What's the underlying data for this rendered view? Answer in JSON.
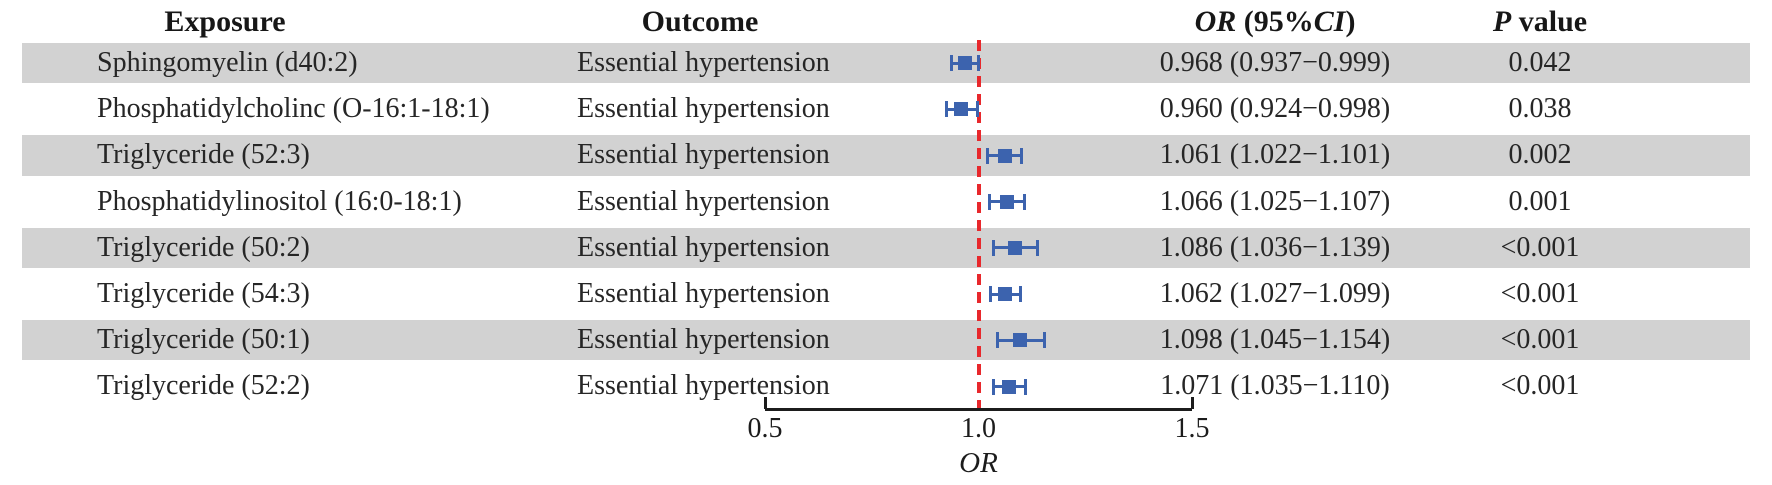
{
  "header": {
    "exposure": "Exposure",
    "outcome": "Outcome",
    "or_column": {
      "or": "OR",
      "mid": " (95%",
      "ci": "CI",
      "close": ")"
    },
    "p_column": {
      "p": "P",
      "rest": " value"
    }
  },
  "chart_data": {
    "type": "forest",
    "title": "",
    "xlabel": "OR",
    "x_axis": {
      "range": [
        0.5,
        1.5
      ],
      "ticks": [
        0.5,
        1.0,
        1.5
      ],
      "tick_labels": [
        "0.5",
        "1.0",
        "1.5"
      ],
      "ref_line": 1.0
    },
    "columns": [
      "Exposure",
      "Outcome",
      "OR (95%CI)",
      "P value"
    ],
    "rows": [
      {
        "exposure": "Sphingomyelin (d40:2)",
        "outcome": "Essential hypertension",
        "or": 0.968,
        "ci_low": 0.937,
        "ci_high": 0.999,
        "or_text": "0.968 (0.937−0.999)",
        "p_text": "0.042"
      },
      {
        "exposure": "Phosphatidylcholinc (O-16:1-18:1)",
        "outcome": "Essential hypertension",
        "or": 0.96,
        "ci_low": 0.924,
        "ci_high": 0.998,
        "or_text": "0.960 (0.924−0.998)",
        "p_text": "0.038"
      },
      {
        "exposure": "Triglyceride (52:3)",
        "outcome": "Essential hypertension",
        "or": 1.061,
        "ci_low": 1.022,
        "ci_high": 1.101,
        "or_text": "1.061 (1.022−1.101)",
        "p_text": "0.002"
      },
      {
        "exposure": "Phosphatidylinositol (16:0-18:1)",
        "outcome": "Essential hypertension",
        "or": 1.066,
        "ci_low": 1.025,
        "ci_high": 1.107,
        "or_text": "1.066 (1.025−1.107)",
        "p_text": "0.001"
      },
      {
        "exposure": "Triglyceride (50:2)",
        "outcome": "Essential hypertension",
        "or": 1.086,
        "ci_low": 1.036,
        "ci_high": 1.139,
        "or_text": "1.086 (1.036−1.139)",
        "p_text": "<0.001"
      },
      {
        "exposure": "Triglyceride (54:3)",
        "outcome": "Essential hypertension",
        "or": 1.062,
        "ci_low": 1.027,
        "ci_high": 1.099,
        "or_text": "1.062 (1.027−1.099)",
        "p_text": "<0.001"
      },
      {
        "exposure": "Triglyceride (50:1)",
        "outcome": "Essential hypertension",
        "or": 1.098,
        "ci_low": 1.045,
        "ci_high": 1.154,
        "or_text": "1.098 (1.045−1.154)",
        "p_text": "<0.001"
      },
      {
        "exposure": "Triglyceride (52:2)",
        "outcome": "Essential hypertension",
        "or": 1.071,
        "ci_low": 1.035,
        "ci_high": 1.11,
        "or_text": "1.071 (1.035−1.110)",
        "p_text": "<0.001"
      }
    ],
    "colors": {
      "marker_blue": "#3c63ae",
      "ref_line_red": "#e8282c",
      "band_gray": "#d2d2d2",
      "axis_black": "#1c1c1c"
    },
    "legend": null,
    "grid": false
  }
}
